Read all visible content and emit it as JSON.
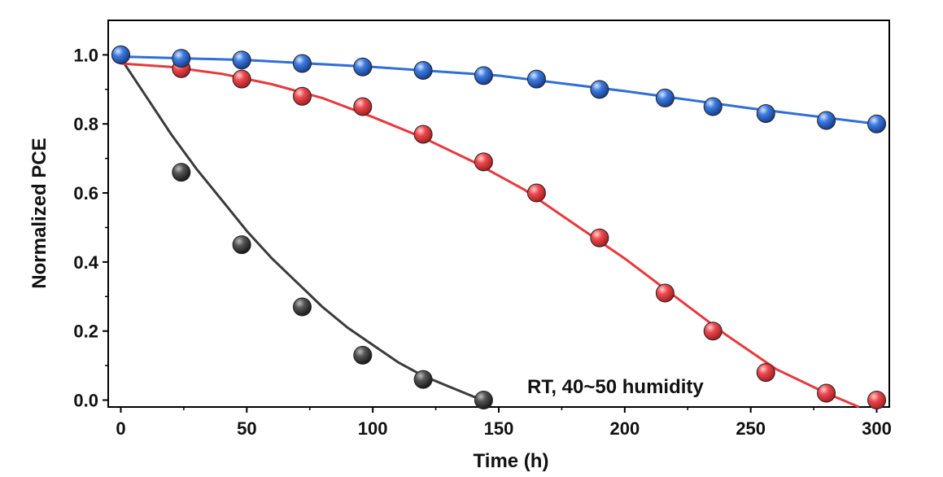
{
  "chart_data": {
    "type": "scatter",
    "xlabel": "Time (h)",
    "ylabel": "Normalized PCE",
    "xlim": [
      -5,
      305
    ],
    "ylim": [
      -0.02,
      1.1
    ],
    "xticks": [
      "0",
      "50",
      "100",
      "150",
      "200",
      "250",
      "300"
    ],
    "yticks": [
      "0.0",
      "0.2",
      "0.4",
      "0.6",
      "0.8",
      "1.0"
    ],
    "annotation": "RT, 40~50 humidity",
    "grid": false,
    "legend": "none",
    "series": [
      {
        "color": "#3a3a3a",
        "fit_line": true,
        "points": [
          [
            0,
            1.0
          ],
          [
            24,
            0.66
          ],
          [
            48,
            0.45
          ],
          [
            72,
            0.27
          ],
          [
            96,
            0.13
          ],
          [
            120,
            0.06
          ],
          [
            144,
            0.0
          ]
        ],
        "fit": [
          [
            0,
            0.99
          ],
          [
            10,
            0.88
          ],
          [
            20,
            0.77
          ],
          [
            30,
            0.67
          ],
          [
            40,
            0.58
          ],
          [
            50,
            0.49
          ],
          [
            60,
            0.41
          ],
          [
            70,
            0.34
          ],
          [
            80,
            0.27
          ],
          [
            90,
            0.21
          ],
          [
            100,
            0.16
          ],
          [
            110,
            0.11
          ],
          [
            120,
            0.07
          ],
          [
            130,
            0.04
          ],
          [
            140,
            0.01
          ],
          [
            145,
            0.0
          ]
        ]
      },
      {
        "color": "#e8383d",
        "fit_line": true,
        "points": [
          [
            24,
            0.96
          ],
          [
            48,
            0.93
          ],
          [
            72,
            0.88
          ],
          [
            96,
            0.85
          ],
          [
            120,
            0.77
          ],
          [
            144,
            0.69
          ],
          [
            165,
            0.6
          ],
          [
            190,
            0.47
          ],
          [
            216,
            0.31
          ],
          [
            235,
            0.2
          ],
          [
            256,
            0.08
          ],
          [
            280,
            0.02
          ],
          [
            300,
            0.0
          ]
        ],
        "fit": [
          [
            0,
            0.975
          ],
          [
            20,
            0.965
          ],
          [
            40,
            0.945
          ],
          [
            60,
            0.915
          ],
          [
            80,
            0.875
          ],
          [
            100,
            0.82
          ],
          [
            120,
            0.76
          ],
          [
            140,
            0.69
          ],
          [
            160,
            0.61
          ],
          [
            180,
            0.51
          ],
          [
            200,
            0.41
          ],
          [
            220,
            0.3
          ],
          [
            240,
            0.19
          ],
          [
            260,
            0.09
          ],
          [
            280,
            0.02
          ],
          [
            293,
            -0.02
          ]
        ]
      },
      {
        "color": "#2f6fd6",
        "fit_line": true,
        "points": [
          [
            0,
            1.0
          ],
          [
            24,
            0.99
          ],
          [
            48,
            0.985
          ],
          [
            72,
            0.975
          ],
          [
            96,
            0.965
          ],
          [
            120,
            0.955
          ],
          [
            144,
            0.94
          ],
          [
            165,
            0.93
          ],
          [
            190,
            0.9
          ],
          [
            216,
            0.875
          ],
          [
            235,
            0.85
          ],
          [
            256,
            0.83
          ],
          [
            280,
            0.81
          ],
          [
            300,
            0.8
          ]
        ],
        "fit": [
          [
            0,
            0.995
          ],
          [
            50,
            0.985
          ],
          [
            100,
            0.965
          ],
          [
            150,
            0.94
          ],
          [
            200,
            0.895
          ],
          [
            250,
            0.845
          ],
          [
            300,
            0.8
          ]
        ]
      }
    ]
  }
}
